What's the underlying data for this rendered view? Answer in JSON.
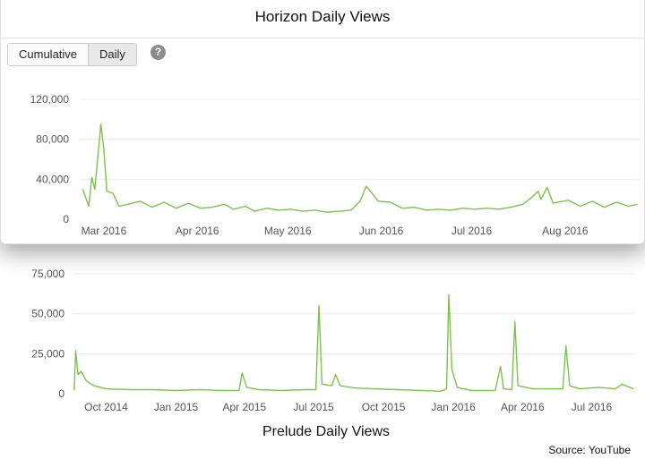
{
  "charts": {
    "top": {
      "title": "Horizon Daily Views"
    },
    "bottom": {
      "title": "Prelude Daily Views"
    }
  },
  "toolbar": {
    "tabs": [
      {
        "label": "Cumulative"
      },
      {
        "label": "Daily"
      }
    ],
    "help_icon": "question-mark-icon"
  },
  "source": "Source: YouTube",
  "colors": {
    "line": "#7dc24b",
    "grid": "#ececec",
    "tick_text": "#555555"
  },
  "chart_data": [
    {
      "type": "line",
      "title": "Horizon Daily Views",
      "x_type": "date",
      "ylim": [
        0,
        120000
      ],
      "yticks": [
        0,
        40000,
        80000,
        120000
      ],
      "ytick_labels": [
        "0",
        "40,000",
        "80,000",
        "120,000"
      ],
      "xticks": [
        "2016-03-01",
        "2016-04-01",
        "2016-05-01",
        "2016-06-01",
        "2016-07-01",
        "2016-08-01"
      ],
      "xtick_labels": [
        "Mar 2016",
        "Apr 2016",
        "May 2016",
        "Jun 2016",
        "Jul 2016",
        "Aug 2016"
      ],
      "grid": true,
      "series": [
        {
          "points": [
            [
              "2016-02-23",
              30000
            ],
            [
              "2016-02-25",
              13000
            ],
            [
              "2016-02-26",
              42000
            ],
            [
              "2016-02-27",
              30000
            ],
            [
              "2016-02-29",
              95000
            ],
            [
              "2016-03-01",
              70000
            ],
            [
              "2016-03-02",
              28000
            ],
            [
              "2016-03-04",
              26000
            ],
            [
              "2016-03-06",
              13000
            ],
            [
              "2016-03-09",
              15000
            ],
            [
              "2016-03-13",
              18000
            ],
            [
              "2016-03-17",
              12000
            ],
            [
              "2016-03-21",
              17000
            ],
            [
              "2016-03-25",
              11000
            ],
            [
              "2016-03-29",
              16000
            ],
            [
              "2016-04-02",
              11000
            ],
            [
              "2016-04-06",
              12000
            ],
            [
              "2016-04-10",
              15000
            ],
            [
              "2016-04-13",
              10000
            ],
            [
              "2016-04-17",
              13000
            ],
            [
              "2016-04-20",
              8000
            ],
            [
              "2016-04-24",
              11000
            ],
            [
              "2016-04-28",
              9000
            ],
            [
              "2016-05-02",
              10000
            ],
            [
              "2016-05-06",
              8000
            ],
            [
              "2016-05-10",
              9000
            ],
            [
              "2016-05-14",
              7000
            ],
            [
              "2016-05-18",
              8000
            ],
            [
              "2016-05-22",
              9000
            ],
            [
              "2016-05-25",
              18000
            ],
            [
              "2016-05-27",
              33000
            ],
            [
              "2016-05-29",
              26000
            ],
            [
              "2016-05-31",
              18000
            ],
            [
              "2016-06-04",
              17000
            ],
            [
              "2016-06-08",
              11000
            ],
            [
              "2016-06-12",
              12000
            ],
            [
              "2016-06-16",
              9000
            ],
            [
              "2016-06-20",
              10000
            ],
            [
              "2016-06-24",
              9000
            ],
            [
              "2016-06-28",
              11000
            ],
            [
              "2016-07-02",
              10000
            ],
            [
              "2016-07-06",
              11000
            ],
            [
              "2016-07-10",
              10000
            ],
            [
              "2016-07-14",
              12000
            ],
            [
              "2016-07-18",
              15000
            ],
            [
              "2016-07-21",
              22000
            ],
            [
              "2016-07-23",
              28000
            ],
            [
              "2016-07-24",
              20000
            ],
            [
              "2016-07-26",
              32000
            ],
            [
              "2016-07-28",
              16000
            ],
            [
              "2016-08-02",
              19000
            ],
            [
              "2016-08-06",
              13000
            ],
            [
              "2016-08-10",
              18000
            ],
            [
              "2016-08-14",
              12000
            ],
            [
              "2016-08-18",
              17000
            ],
            [
              "2016-08-22",
              13000
            ],
            [
              "2016-08-25",
              15000
            ]
          ]
        }
      ]
    },
    {
      "type": "line",
      "title": "Prelude Daily Views",
      "x_type": "date",
      "ylim": [
        0,
        75000
      ],
      "yticks": [
        0,
        25000,
        50000,
        75000
      ],
      "ytick_labels": [
        "0",
        "25,000",
        "50,000",
        "75,000"
      ],
      "xticks": [
        "2014-10-01",
        "2015-01-01",
        "2015-04-01",
        "2015-07-01",
        "2015-10-01",
        "2016-01-01",
        "2016-04-01",
        "2016-07-01"
      ],
      "xtick_labels": [
        "Oct 2014",
        "Jan 2015",
        "Apr 2015",
        "Jul 2015",
        "Oct 2015",
        "Jan 2016",
        "Apr 2016",
        "Jul 2016"
      ],
      "grid": true,
      "series": [
        {
          "points": [
            [
              "2014-08-20",
              2000
            ],
            [
              "2014-08-22",
              27000
            ],
            [
              "2014-08-25",
              12000
            ],
            [
              "2014-08-29",
              14000
            ],
            [
              "2014-09-05",
              8000
            ],
            [
              "2014-09-15",
              5000
            ],
            [
              "2014-10-01",
              3000
            ],
            [
              "2014-11-01",
              2500
            ],
            [
              "2014-12-01",
              2500
            ],
            [
              "2015-01-01",
              2000
            ],
            [
              "2015-02-01",
              2500
            ],
            [
              "2015-03-01",
              2000
            ],
            [
              "2015-03-25",
              2000
            ],
            [
              "2015-03-29",
              13000
            ],
            [
              "2015-04-04",
              4000
            ],
            [
              "2015-04-20",
              2500
            ],
            [
              "2015-05-20",
              2000
            ],
            [
              "2015-06-20",
              2500
            ],
            [
              "2015-07-04",
              2500
            ],
            [
              "2015-07-08",
              55000
            ],
            [
              "2015-07-12",
              6000
            ],
            [
              "2015-07-25",
              5000
            ],
            [
              "2015-07-30",
              12000
            ],
            [
              "2015-08-05",
              5000
            ],
            [
              "2015-08-25",
              3500
            ],
            [
              "2015-09-20",
              3000
            ],
            [
              "2015-10-20",
              2500
            ],
            [
              "2015-11-20",
              2000
            ],
            [
              "2015-12-15",
              1500
            ],
            [
              "2015-12-23",
              3000
            ],
            [
              "2015-12-26",
              62000
            ],
            [
              "2015-12-30",
              15000
            ],
            [
              "2016-01-06",
              4000
            ],
            [
              "2016-01-25",
              2000
            ],
            [
              "2016-02-25",
              2000
            ],
            [
              "2016-03-03",
              17000
            ],
            [
              "2016-03-07",
              3000
            ],
            [
              "2016-03-18",
              2500
            ],
            [
              "2016-03-22",
              45000
            ],
            [
              "2016-03-26",
              5000
            ],
            [
              "2016-04-15",
              3000
            ],
            [
              "2016-05-10",
              3000
            ],
            [
              "2016-05-24",
              3000
            ],
            [
              "2016-05-28",
              30000
            ],
            [
              "2016-06-02",
              5000
            ],
            [
              "2016-06-15",
              3000
            ],
            [
              "2016-07-10",
              4000
            ],
            [
              "2016-08-01",
              3000
            ],
            [
              "2016-08-10",
              6000
            ],
            [
              "2016-08-25",
              3000
            ]
          ]
        }
      ]
    }
  ]
}
